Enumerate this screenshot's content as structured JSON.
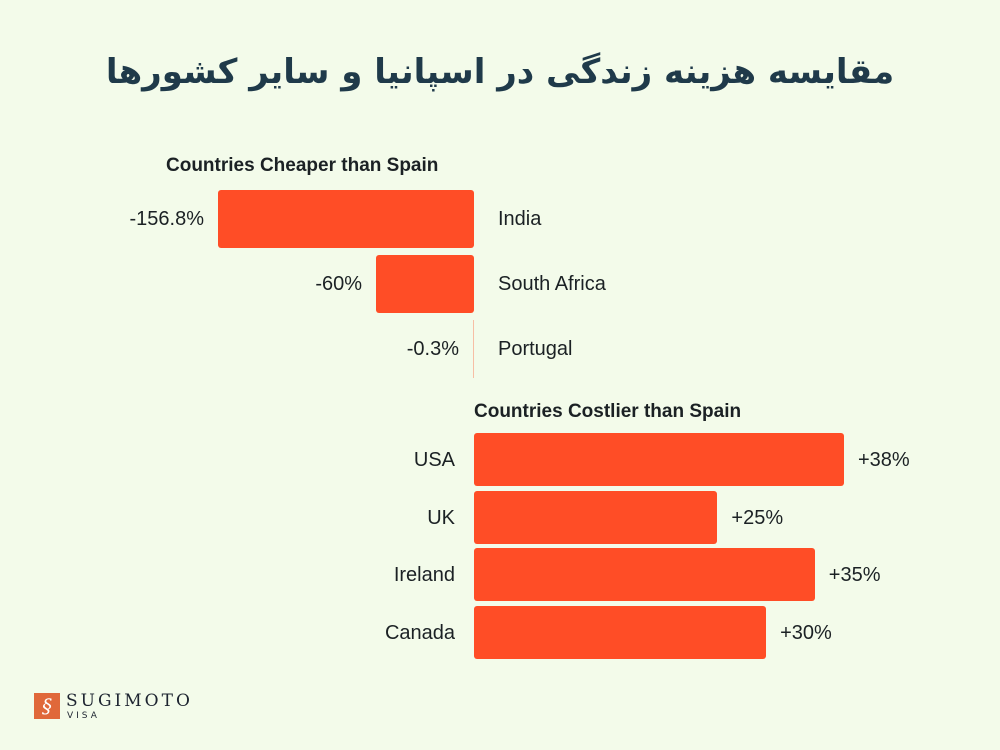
{
  "title": "مقایسه هزینه زندگی در اسپانیا و سایر کشورها",
  "chart_data": [
    {
      "type": "bar",
      "orientation": "horizontal",
      "title": "Countries Cheaper than Spain",
      "categories": [
        "India",
        "South Africa",
        "Portugal"
      ],
      "values": [
        -156.8,
        -60,
        -0.3
      ],
      "value_labels": [
        "-156.8%",
        "-60%",
        "-0.3%"
      ],
      "bar_color": "#ff4d26",
      "grid": false
    },
    {
      "type": "bar",
      "orientation": "horizontal",
      "title": "Countries Costlier than Spain",
      "categories": [
        "USA",
        "UK",
        "Ireland",
        "Canada"
      ],
      "values": [
        38,
        25,
        35,
        30
      ],
      "value_labels": [
        "+38%",
        "+25%",
        "+35%",
        "+30%"
      ],
      "bar_color": "#ff4d26",
      "grid": false
    }
  ],
  "logo": {
    "name": "SUGIMOTO",
    "sub": "VISA"
  }
}
